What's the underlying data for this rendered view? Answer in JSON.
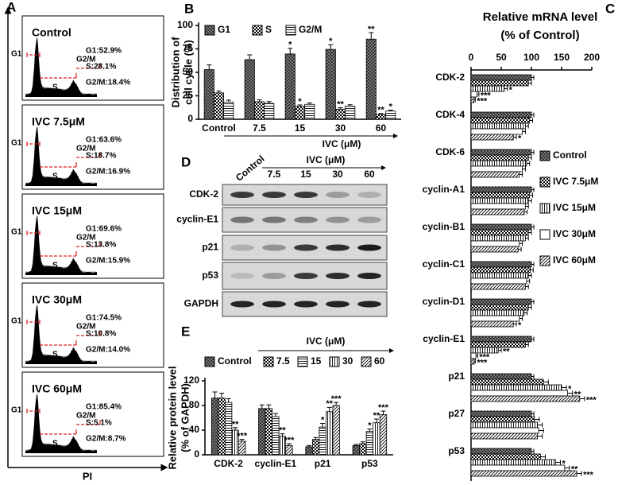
{
  "panel_labels": [
    "A",
    "B",
    "C",
    "D",
    "E"
  ],
  "panel_a": {
    "xlabel": "PI",
    "gates": [
      "G1",
      "S",
      "G2/M"
    ],
    "samples": [
      {
        "title": "Control",
        "stats": [
          "G1:52.9%",
          "S:28.1%",
          "G2/M:18.4%"
        ]
      },
      {
        "title": "IVC 7.5μM",
        "stats": [
          "G1:63.6%",
          "S:18.7%",
          "G2/M:16.9%"
        ]
      },
      {
        "title": "IVC 15μM",
        "stats": [
          "G1:69.6%",
          "S:13.8%",
          "G2/M:15.9%"
        ]
      },
      {
        "title": "IVC 30μM",
        "stats": [
          "G1:74.5%",
          "S:10.8%",
          "G2/M:14.0%"
        ]
      },
      {
        "title": "IVC 60μM",
        "stats": [
          "G1:85.4%",
          "S:5.1%",
          "G2/M:8.7%"
        ]
      }
    ]
  },
  "panel_d": {
    "columns": [
      "Control",
      "7.5",
      "15",
      "30",
      "60"
    ],
    "group_label": "IVC (μM)",
    "rows": [
      "CDK-2",
      "cyclin-E1",
      "p21",
      "p53",
      "GAPDH"
    ]
  },
  "chart_data": [
    {
      "type": "bar",
      "ylabel": [
        "Distribution of",
        "cell cycle (%)"
      ],
      "xlabel": "IVC (μM)",
      "categories": [
        "Control",
        "7.5",
        "15",
        "30",
        "60"
      ],
      "ylim": [
        0,
        100
      ],
      "yticks": [
        0,
        25,
        50,
        75,
        100
      ],
      "series": [
        {
          "name": "G1",
          "pattern": "crosshatch",
          "values": [
            52.9,
            63.6,
            69.6,
            74.5,
            85.4
          ],
          "errors": [
            5,
            5,
            6,
            5,
            7
          ],
          "significance": [
            null,
            null,
            "*",
            "*",
            "**"
          ]
        },
        {
          "name": "S",
          "pattern": "checker",
          "values": [
            28.1,
            18.7,
            13.8,
            10.8,
            5.1
          ],
          "errors": [
            2,
            2,
            1.5,
            1.5,
            1
          ],
          "significance": [
            null,
            null,
            "*",
            "**",
            "**"
          ]
        },
        {
          "name": "G2/M",
          "pattern": "hlines",
          "values": [
            18.4,
            16.9,
            15.9,
            14.0,
            8.7
          ],
          "errors": [
            2,
            2,
            1.5,
            1.5,
            1
          ],
          "significance": [
            null,
            null,
            null,
            null,
            "*"
          ]
        }
      ]
    },
    {
      "type": "barh",
      "title": "Relative mRNA level",
      "subtitle": "(% of Control)",
      "categories": [
        "CDK-2",
        "CDK-4",
        "CDK-6",
        "cyclin-A1",
        "cyclin-B1",
        "cyclin-C1",
        "cyclin-D1",
        "cyclin-E1",
        "p21",
        "p27",
        "p53"
      ],
      "xlim": [
        0,
        200
      ],
      "xticks": [
        0,
        50,
        100,
        150,
        200
      ],
      "series": [
        {
          "name": "Control",
          "pattern": "crosshatch",
          "values": [
            100,
            100,
            100,
            100,
            100,
            100,
            100,
            100,
            100,
            100,
            100
          ],
          "errors": [
            4,
            4,
            4,
            4,
            4,
            4,
            4,
            4,
            4,
            4,
            4
          ],
          "significance": [
            null,
            null,
            null,
            null,
            null,
            null,
            null,
            null,
            null,
            null,
            null
          ]
        },
        {
          "name": "IVC 7.5μM",
          "pattern": "checker",
          "values": [
            95,
            97,
            95,
            97,
            95,
            98,
            95,
            90,
            120,
            105,
            115
          ],
          "errors": [
            5,
            5,
            5,
            5,
            5,
            5,
            5,
            5,
            8,
            8,
            8
          ],
          "significance": [
            null,
            null,
            null,
            null,
            null,
            null,
            null,
            null,
            null,
            null,
            null
          ]
        },
        {
          "name": "IVC 15μM",
          "pattern": "vlines",
          "values": [
            55,
            90,
            92,
            95,
            90,
            95,
            88,
            45,
            150,
            110,
            140
          ],
          "errors": [
            5,
            5,
            5,
            5,
            5,
            5,
            5,
            5,
            8,
            8,
            8
          ],
          "significance": [
            "*",
            null,
            null,
            null,
            null,
            null,
            null,
            "**",
            "*",
            null,
            "*"
          ]
        },
        {
          "name": "IVC 30μM",
          "pattern": "none",
          "values": [
            10,
            85,
            85,
            90,
            80,
            92,
            80,
            8,
            160,
            112,
            155
          ],
          "errors": [
            3,
            5,
            5,
            5,
            5,
            5,
            5,
            3,
            8,
            8,
            8
          ],
          "significance": [
            "***",
            null,
            null,
            null,
            null,
            null,
            null,
            "***",
            "**",
            null,
            "**"
          ]
        },
        {
          "name": "IVC 60μM",
          "pattern": "diagonal",
          "values": [
            5,
            70,
            80,
            88,
            78,
            90,
            70,
            5,
            180,
            110,
            175
          ],
          "errors": [
            2,
            5,
            5,
            5,
            5,
            5,
            5,
            2,
            8,
            8,
            8
          ],
          "significance": [
            "***",
            "*",
            null,
            null,
            null,
            null,
            "*",
            "***",
            "***",
            null,
            "***"
          ]
        }
      ]
    },
    {
      "type": "bar",
      "ylabel": [
        "Relative protein level",
        "(% of GAPDH)"
      ],
      "legend_title": "IVC (μM)",
      "categories": [
        "CDK-2",
        "cyclin-E1",
        "p21",
        "p53"
      ],
      "ylim": [
        0,
        120
      ],
      "yticks": [
        0,
        40,
        80,
        120
      ],
      "series": [
        {
          "name": "Control",
          "pattern": "crosshatch",
          "values": [
            92,
            75,
            13,
            15
          ],
          "errors": [
            10,
            6,
            2,
            2
          ],
          "significance": [
            null,
            null,
            null,
            null
          ]
        },
        {
          "name": "7.5",
          "pattern": "checker",
          "values": [
            92,
            75,
            25,
            18
          ],
          "errors": [
            8,
            6,
            3,
            3
          ],
          "significance": [
            null,
            null,
            null,
            null
          ]
        },
        {
          "name": "15",
          "pattern": "hlines",
          "values": [
            85,
            62,
            45,
            38
          ],
          "errors": [
            6,
            5,
            6,
            4
          ],
          "significance": [
            null,
            null,
            "*",
            "*"
          ]
        },
        {
          "name": "30",
          "pattern": "vlines",
          "values": [
            40,
            30,
            70,
            52
          ],
          "errors": [
            4,
            4,
            7,
            6
          ],
          "significance": [
            "**",
            "**",
            "**",
            "**"
          ]
        },
        {
          "name": "60",
          "pattern": "diagonal",
          "values": [
            22,
            15,
            80,
            65
          ],
          "errors": [
            3,
            3,
            5,
            6
          ],
          "significance": [
            "***",
            "***",
            "***",
            "***"
          ]
        }
      ]
    }
  ]
}
